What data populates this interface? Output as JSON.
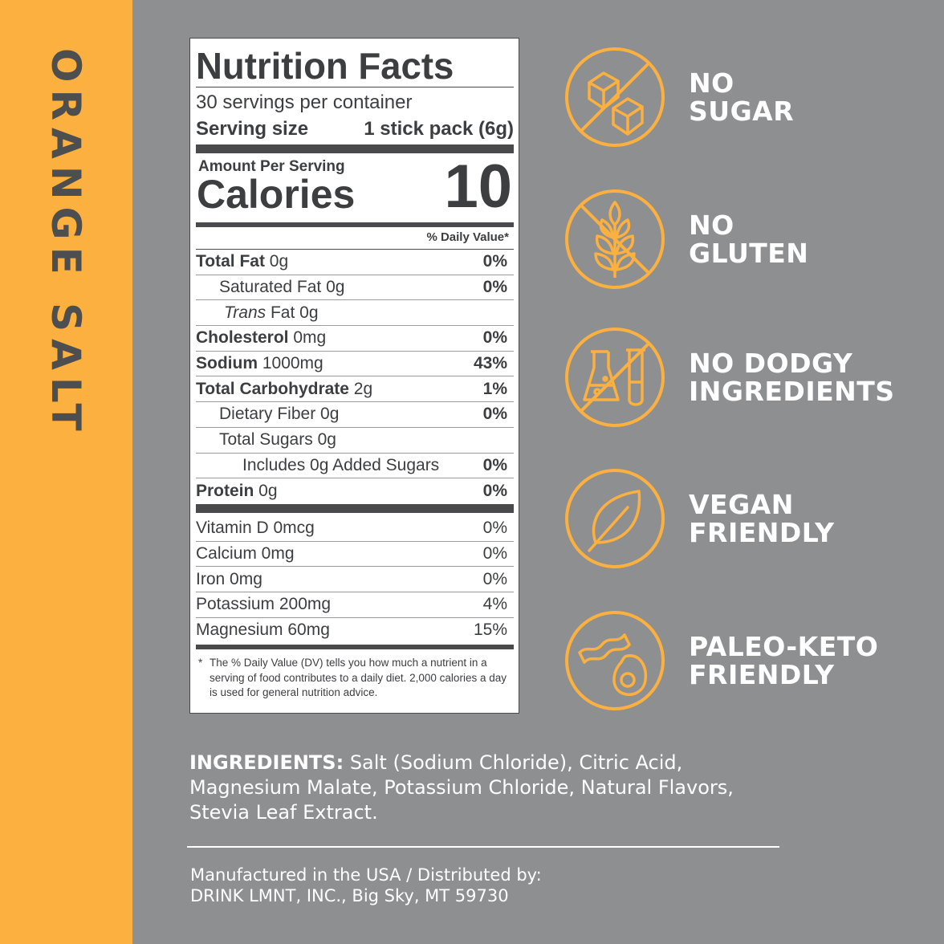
{
  "side_title": "ORANGE SALT",
  "nutrition": {
    "title": "Nutrition Facts",
    "servings": "30 servings per container",
    "serving_size_label": "Serving size",
    "serving_size_value": "1 stick pack (6g)",
    "amount_per_serving": "Amount Per Serving",
    "calories_label": "Calories",
    "calories_value": "10",
    "dv_header": "% Daily Value*",
    "rows": [
      {
        "name": "Total Fat",
        "amount": " 0g",
        "pct": "0%"
      },
      {
        "name": "Saturated Fat",
        "amount": " 0g",
        "pct": "0%"
      },
      {
        "name": "Trans",
        "amount": " Fat 0g",
        "pct": ""
      },
      {
        "name": "Cholesterol",
        "amount": " 0mg",
        "pct": "0%"
      },
      {
        "name": "Sodium",
        "amount": " 1000mg",
        "pct": "43%"
      },
      {
        "name": "Total Carbohydrate",
        "amount": " 2g",
        "pct": "1%"
      },
      {
        "name": "Dietary Fiber",
        "amount": " 0g",
        "pct": "0%"
      },
      {
        "name": "Total Sugars",
        "amount": " 0g",
        "pct": ""
      },
      {
        "name": "Includes 0g Added Sugars",
        "amount": "",
        "pct": "0%"
      },
      {
        "name": "Protein",
        "amount": " 0g",
        "pct": "0%"
      }
    ],
    "vitamins": [
      {
        "label": "Vitamin D 0mcg",
        "pct": "0%"
      },
      {
        "label": "Calcium 0mg",
        "pct": "0%"
      },
      {
        "label": "Iron 0mg",
        "pct": "0%"
      },
      {
        "label": "Potassium 200mg",
        "pct": "4%"
      },
      {
        "label": "Magnesium 60mg",
        "pct": "15%"
      }
    ],
    "footnote_star": "*",
    "footnote": "The % Daily Value (DV) tells you how much a nutrient in a serving of food contributes to a daily diet. 2,000 calories a day is used for general nutrition advice."
  },
  "badges": [
    {
      "line1": "NO",
      "line2": "SUGAR",
      "icon": "no-sugar-icon"
    },
    {
      "line1": "NO",
      "line2": "GLUTEN",
      "icon": "no-gluten-icon"
    },
    {
      "line1": "NO DODGY",
      "line2": "INGREDIENTS",
      "icon": "no-dodgy-ingredients-icon"
    },
    {
      "line1": "VEGAN",
      "line2": "FRIENDLY",
      "icon": "vegan-leaf-icon"
    },
    {
      "line1": "PALEO-KETO",
      "line2": "FRIENDLY",
      "icon": "paleo-keto-icon"
    }
  ],
  "ingredients_label": "INGREDIENTS:",
  "ingredients_text": " Salt (Sodium Chloride), Citric Acid, Magnesium Malate, Potassium Chloride, Natural Flavors, Stevia Leaf Extract.",
  "manufacturer_line1": "Manufactured in the USA / Distributed by:",
  "manufacturer_line2": "DRINK LMNT, INC., Big Sky, MT 59730",
  "colors": {
    "accent": "#fbb040",
    "background": "#8e8f91",
    "dark": "#4d4e50"
  }
}
